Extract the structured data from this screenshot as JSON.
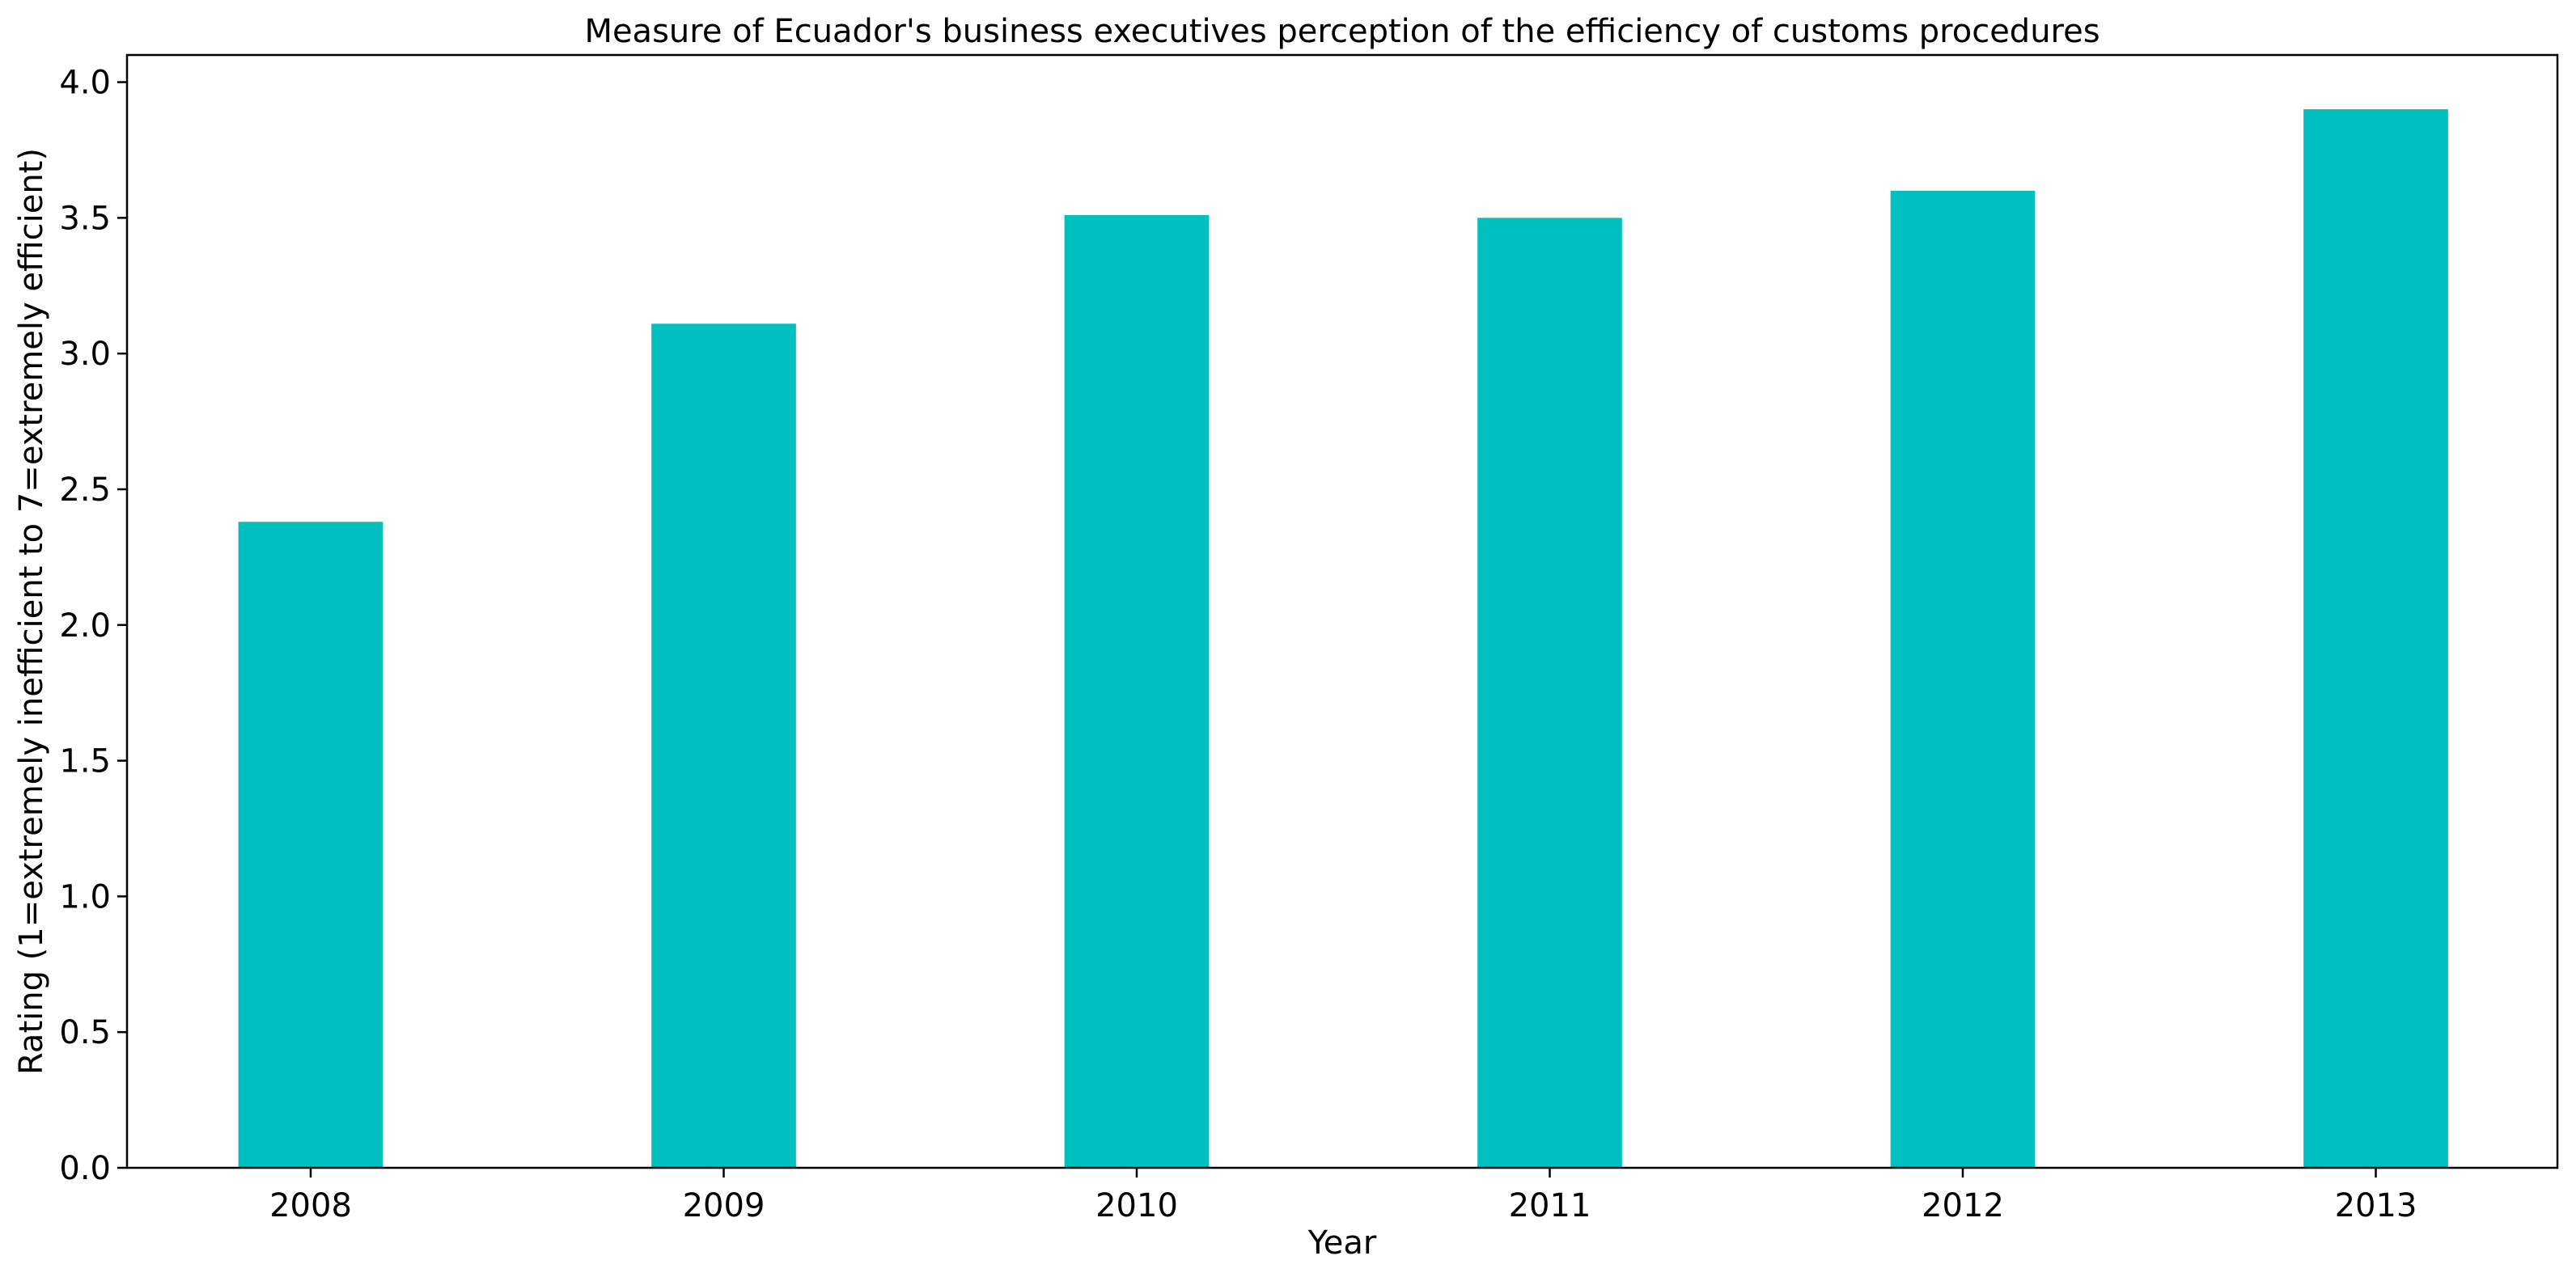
{
  "chart_data": {
    "type": "bar",
    "title": "Measure of Ecuador's business executives perception of the efficiency of customs procedures",
    "xlabel": "Year",
    "ylabel": "Rating (1=extremely inefficient to 7=extremely efficient)",
    "categories": [
      "2008",
      "2009",
      "2010",
      "2011",
      "2012",
      "2013"
    ],
    "values": [
      2.38,
      3.11,
      3.51,
      3.5,
      3.6,
      3.9
    ],
    "ylim": [
      0,
      4.1
    ],
    "yticks": [
      0.0,
      0.5,
      1.0,
      1.5,
      2.0,
      2.5,
      3.0,
      3.5,
      4.0
    ],
    "ytick_labels": [
      "0.0",
      "0.5",
      "1.0",
      "1.5",
      "2.0",
      "2.5",
      "3.0",
      "3.5",
      "4.0"
    ],
    "bar_color": "#00bfbf",
    "grid": false,
    "legend": "none"
  }
}
